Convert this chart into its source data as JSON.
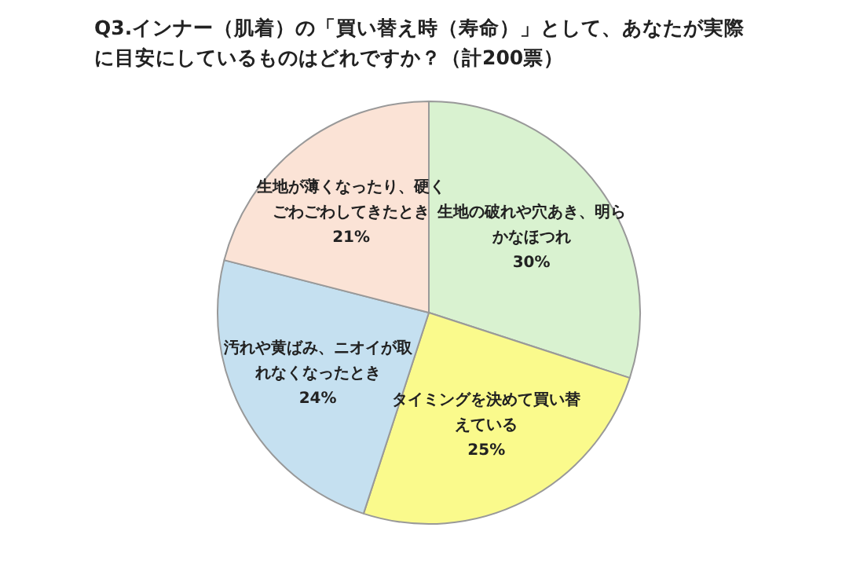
{
  "chart_data": {
    "type": "pie",
    "title": "Q3.インナー（肌着）の「買い替え時（寿命）」として、あなたが実際に目安にしているものはどれですか？（計200票）",
    "categories": [
      "生地の破れや穴あき、明らかなほつれ",
      "タイミングを決めて買い替えている",
      "汚れや黄ばみ、ニオイが取れなくなったとき",
      "生地が薄くなったり、硬くごわごわしてきたとき"
    ],
    "values": [
      30,
      25,
      24,
      21
    ],
    "colors": [
      "#d9f2d0",
      "#fafa8c",
      "#c5e0f0",
      "#fbe3d6"
    ],
    "value_labels": [
      "30%",
      "25%",
      "24%",
      "21%"
    ],
    "legend": false
  }
}
